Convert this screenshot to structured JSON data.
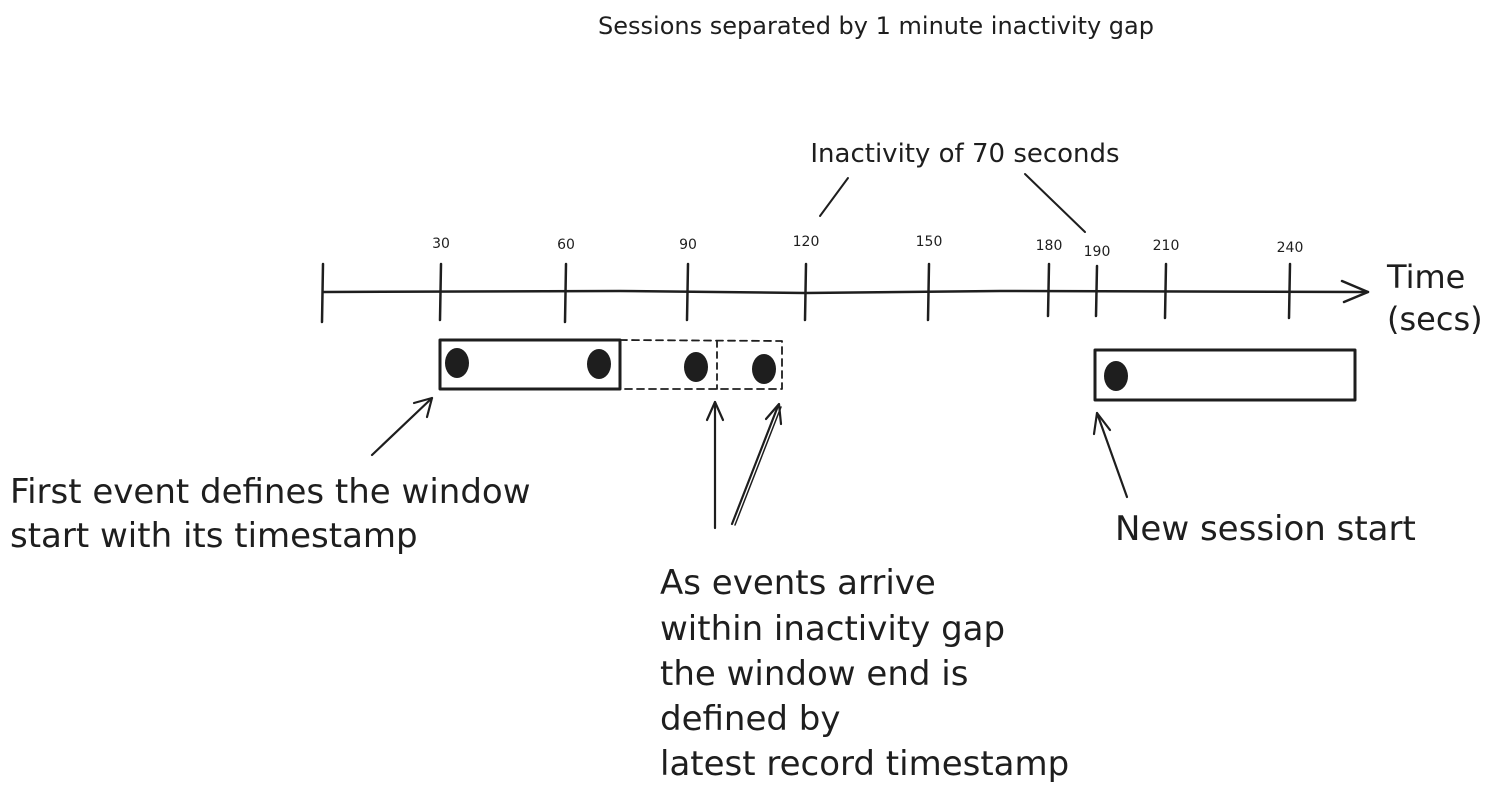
{
  "title": "Sessions separated by 1 minute inactivity gap",
  "gap_label": "Inactivity of 70 seconds",
  "axis": {
    "label_line1": "Time",
    "label_line2": "(secs)",
    "ticks": [
      "30",
      "60",
      "90",
      "120",
      "150",
      "180",
      "190",
      "210",
      "240"
    ]
  },
  "annotations": {
    "first_event": [
      "First event defines the window",
      "start with its timestamp"
    ],
    "window_end": [
      "As events arrive",
      "within inactivity gap",
      "the window end is",
      "defined by",
      "latest record timestamp"
    ],
    "new_session": [
      "New session start"
    ]
  },
  "colors": {
    "ink": "#1e1e1e",
    "background": "#ffffff"
  }
}
